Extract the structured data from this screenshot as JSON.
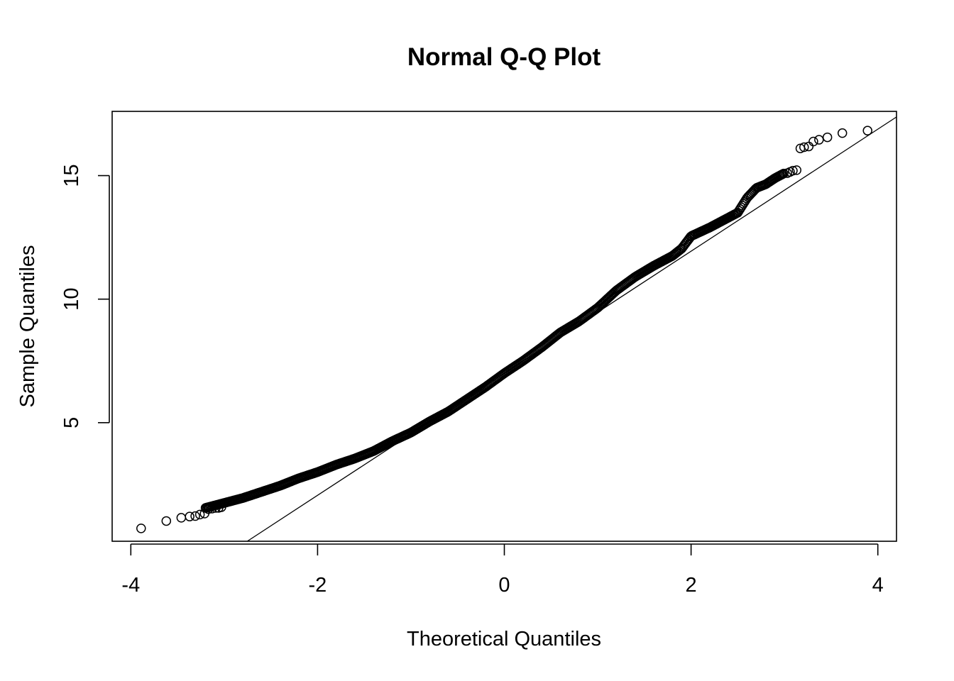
{
  "chart_data": {
    "type": "scatter",
    "title": "Normal Q-Q Plot",
    "xlabel": "Theoretical Quantiles",
    "ylabel": "Sample Quantiles",
    "xlim": [
      -4.2,
      4.2
    ],
    "ylim": [
      0.2,
      17.6
    ],
    "x_ticks": [
      -4,
      -2,
      0,
      2,
      4
    ],
    "x_tick_labels": [
      "-4",
      "-2",
      "0",
      "2",
      "4"
    ],
    "y_ticks": [
      5,
      10,
      15
    ],
    "y_tick_labels": [
      "5",
      "10",
      "15"
    ],
    "grid": false,
    "legend": "none",
    "reference_line": {
      "intercept": 7.0,
      "slope": 2.47
    },
    "sample_curve": [
      [
        -3.2,
        1.55
      ],
      [
        -3.0,
        1.75
      ],
      [
        -2.8,
        1.95
      ],
      [
        -2.6,
        2.2
      ],
      [
        -2.4,
        2.45
      ],
      [
        -2.2,
        2.75
      ],
      [
        -2.0,
        3.0
      ],
      [
        -1.8,
        3.3
      ],
      [
        -1.6,
        3.55
      ],
      [
        -1.4,
        3.85
      ],
      [
        -1.2,
        4.25
      ],
      [
        -1.0,
        4.6
      ],
      [
        -0.8,
        5.05
      ],
      [
        -0.6,
        5.45
      ],
      [
        -0.4,
        5.95
      ],
      [
        -0.2,
        6.45
      ],
      [
        0.0,
        7.0
      ],
      [
        0.2,
        7.5
      ],
      [
        0.4,
        8.05
      ],
      [
        0.6,
        8.65
      ],
      [
        0.8,
        9.1
      ],
      [
        1.0,
        9.65
      ],
      [
        1.2,
        10.35
      ],
      [
        1.4,
        10.9
      ],
      [
        1.6,
        11.35
      ],
      [
        1.8,
        11.75
      ],
      [
        1.9,
        12.05
      ],
      [
        2.0,
        12.55
      ],
      [
        2.2,
        12.9
      ],
      [
        2.4,
        13.3
      ],
      [
        2.5,
        13.5
      ],
      [
        2.6,
        14.1
      ],
      [
        2.7,
        14.5
      ],
      [
        2.8,
        14.65
      ],
      [
        2.9,
        14.9
      ],
      [
        3.0,
        15.1
      ]
    ],
    "tail_points": [
      {
        "x": -3.89,
        "y": 0.72
      },
      {
        "x": -3.62,
        "y": 1.02
      },
      {
        "x": -3.46,
        "y": 1.15
      },
      {
        "x": -3.37,
        "y": 1.2
      },
      {
        "x": -3.31,
        "y": 1.22
      },
      {
        "x": -3.26,
        "y": 1.28
      },
      {
        "x": -3.21,
        "y": 1.32
      },
      {
        "x": -3.17,
        "y": 1.5
      },
      {
        "x": -3.13,
        "y": 1.52
      },
      {
        "x": -3.09,
        "y": 1.55
      },
      {
        "x": -3.06,
        "y": 1.55
      },
      {
        "x": -3.03,
        "y": 1.58
      },
      {
        "x": 3.03,
        "y": 15.1
      },
      {
        "x": 3.06,
        "y": 15.15
      },
      {
        "x": 3.09,
        "y": 15.2
      },
      {
        "x": 3.13,
        "y": 15.22
      },
      {
        "x": 3.17,
        "y": 16.1
      },
      {
        "x": 3.21,
        "y": 16.15
      },
      {
        "x": 3.26,
        "y": 16.18
      },
      {
        "x": 3.31,
        "y": 16.38
      },
      {
        "x": 3.37,
        "y": 16.45
      },
      {
        "x": 3.46,
        "y": 16.55
      },
      {
        "x": 3.62,
        "y": 16.72
      },
      {
        "x": 3.89,
        "y": 16.82
      }
    ]
  }
}
